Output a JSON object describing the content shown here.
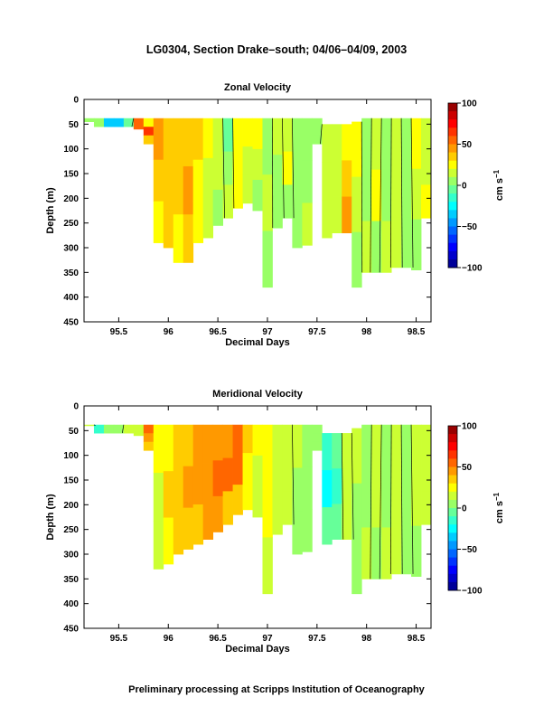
{
  "page": {
    "title": "LG0304, Section Drake–south; 04/06–04/09, 2003",
    "footer": "Preliminary processing at Scripps Institution of Oceanography"
  },
  "chart_data": [
    {
      "type": "heatmap",
      "title": "Zonal Velocity",
      "xlabel": "Decimal Days",
      "ylabel": "Depth (m)",
      "xlim": [
        95.15,
        98.65
      ],
      "ylim": [
        450,
        0
      ],
      "x_ticks": [
        "95.5",
        "96",
        "96.5",
        "97",
        "97.5",
        "98",
        "98.5"
      ],
      "y_ticks": [
        "0",
        "50",
        "100",
        "150",
        "200",
        "250",
        "300",
        "350",
        "400",
        "450"
      ],
      "colorbar": {
        "label": "cm s",
        "label_superscript": "−1",
        "range": [
          -100,
          100
        ],
        "ticks": [
          "100",
          "50",
          "0",
          "−50",
          "−100"
        ]
      },
      "x": [
        95.2,
        95.3,
        95.4,
        95.5,
        95.6,
        95.7,
        95.8,
        95.9,
        96.0,
        96.1,
        96.2,
        96.3,
        96.4,
        96.5,
        96.6,
        96.7,
        96.8,
        96.9,
        97.0,
        97.1,
        97.2,
        97.3,
        97.4,
        97.5,
        97.6,
        97.7,
        97.8,
        97.9,
        98.0,
        98.1,
        98.2,
        98.3,
        98.4,
        98.5,
        98.6
      ],
      "top_depth": [
        38,
        38,
        38,
        38,
        38,
        38,
        38,
        38,
        38,
        38,
        38,
        38,
        38,
        38,
        38,
        38,
        38,
        38,
        38,
        38,
        38,
        38,
        38,
        38,
        50,
        50,
        50,
        45,
        38,
        38,
        38,
        38,
        38,
        38,
        38
      ],
      "max_depth": [
        45,
        55,
        55,
        55,
        55,
        60,
        90,
        290,
        300,
        330,
        330,
        290,
        280,
        255,
        240,
        220,
        210,
        225,
        380,
        260,
        240,
        300,
        295,
        90,
        280,
        270,
        270,
        380,
        350,
        350,
        350,
        340,
        340,
        345,
        240
      ],
      "values": [
        [
          5,
          5,
          5
        ],
        [
          3,
          3,
          3
        ],
        [
          -40,
          -40,
          -40
        ],
        [
          -35,
          -35,
          -35
        ],
        [
          -10,
          -10,
          -10
        ],
        [
          55,
          55,
          55
        ],
        [
          20,
          60,
          35
        ],
        [
          45,
          35,
          28
        ],
        [
          38,
          38,
          30
        ],
        [
          30,
          35,
          28
        ],
        [
          38,
          45,
          35
        ],
        [
          30,
          25,
          22
        ],
        [
          22,
          18,
          12
        ],
        [
          12,
          15,
          8
        ],
        [
          -8,
          5,
          12
        ],
        [
          25,
          28,
          20
        ],
        [
          20,
          15,
          10
        ],
        [
          25,
          12,
          8
        ],
        [
          5,
          15,
          0
        ],
        [
          10,
          8,
          5
        ],
        [
          18,
          20,
          8
        ],
        [
          5,
          0,
          3
        ],
        [
          3,
          8,
          12
        ],
        [
          3,
          5,
          5
        ],
        [
          10,
          15,
          18
        ],
        [
          15,
          18,
          12
        ],
        [
          25,
          35,
          40
        ],
        [
          20,
          12,
          8
        ],
        [
          8,
          5,
          10
        ],
        [
          15,
          20,
          8
        ],
        [
          5,
          0,
          10
        ],
        [
          12,
          18,
          15
        ],
        [
          5,
          3,
          5
        ],
        [
          20,
          15,
          8
        ],
        [
          15,
          18,
          20
        ]
      ]
    },
    {
      "type": "heatmap",
      "title": "Meridional Velocity",
      "xlabel": "Decimal Days",
      "ylabel": "Depth (m)",
      "xlim": [
        95.15,
        98.65
      ],
      "ylim": [
        450,
        0
      ],
      "x_ticks": [
        "95.5",
        "96",
        "96.5",
        "97",
        "97.5",
        "98",
        "98.5"
      ],
      "y_ticks": [
        "0",
        "50",
        "100",
        "150",
        "200",
        "250",
        "300",
        "350",
        "400",
        "450"
      ],
      "colorbar": {
        "label": "cm s",
        "label_superscript": "−1",
        "range": [
          -100,
          100
        ],
        "ticks": [
          "100",
          "50",
          "0",
          "−50",
          "−100"
        ]
      },
      "x": [
        95.2,
        95.3,
        95.4,
        95.5,
        95.6,
        95.7,
        95.8,
        95.9,
        96.0,
        96.1,
        96.2,
        96.3,
        96.4,
        96.5,
        96.6,
        96.7,
        96.8,
        96.9,
        97.0,
        97.1,
        97.2,
        97.3,
        97.4,
        97.5,
        97.6,
        97.7,
        97.8,
        97.9,
        98.0,
        98.1,
        98.2,
        98.3,
        98.4,
        98.5,
        98.6
      ],
      "top_depth": [
        38,
        38,
        38,
        38,
        38,
        38,
        38,
        38,
        38,
        38,
        38,
        38,
        38,
        38,
        38,
        38,
        38,
        38,
        38,
        38,
        38,
        38,
        38,
        38,
        55,
        55,
        55,
        45,
        38,
        38,
        38,
        38,
        38,
        38,
        38
      ],
      "max_depth": [
        40,
        55,
        55,
        55,
        55,
        60,
        90,
        330,
        320,
        300,
        290,
        280,
        270,
        255,
        240,
        220,
        210,
        225,
        380,
        260,
        240,
        300,
        295,
        90,
        280,
        270,
        270,
        380,
        350,
        350,
        350,
        340,
        340,
        345,
        240
      ],
      "values": [
        [
          10,
          10,
          10
        ],
        [
          -20,
          -20,
          -20
        ],
        [
          0,
          0,
          0
        ],
        [
          5,
          5,
          5
        ],
        [
          10,
          10,
          10
        ],
        [
          18,
          18,
          18
        ],
        [
          55,
          40,
          30
        ],
        [
          22,
          18,
          18
        ],
        [
          28,
          30,
          25
        ],
        [
          35,
          38,
          32
        ],
        [
          35,
          42,
          35
        ],
        [
          40,
          45,
          38
        ],
        [
          42,
          48,
          40
        ],
        [
          45,
          50,
          40
        ],
        [
          40,
          50,
          35
        ],
        [
          50,
          58,
          30
        ],
        [
          30,
          25,
          20
        ],
        [
          22,
          18,
          12
        ],
        [
          20,
          22,
          15
        ],
        [
          15,
          12,
          10
        ],
        [
          15,
          18,
          12
        ],
        [
          10,
          8,
          5
        ],
        [
          8,
          5,
          5
        ],
        [
          5,
          5,
          5
        ],
        [
          -15,
          -25,
          -10
        ],
        [
          -5,
          -15,
          -5
        ],
        [
          10,
          12,
          15
        ],
        [
          12,
          8,
          5
        ],
        [
          5,
          8,
          10
        ],
        [
          10,
          12,
          8
        ],
        [
          5,
          5,
          10
        ],
        [
          12,
          15,
          12
        ],
        [
          8,
          5,
          5
        ],
        [
          15,
          10,
          8
        ],
        [
          10,
          12,
          15
        ]
      ]
    }
  ]
}
